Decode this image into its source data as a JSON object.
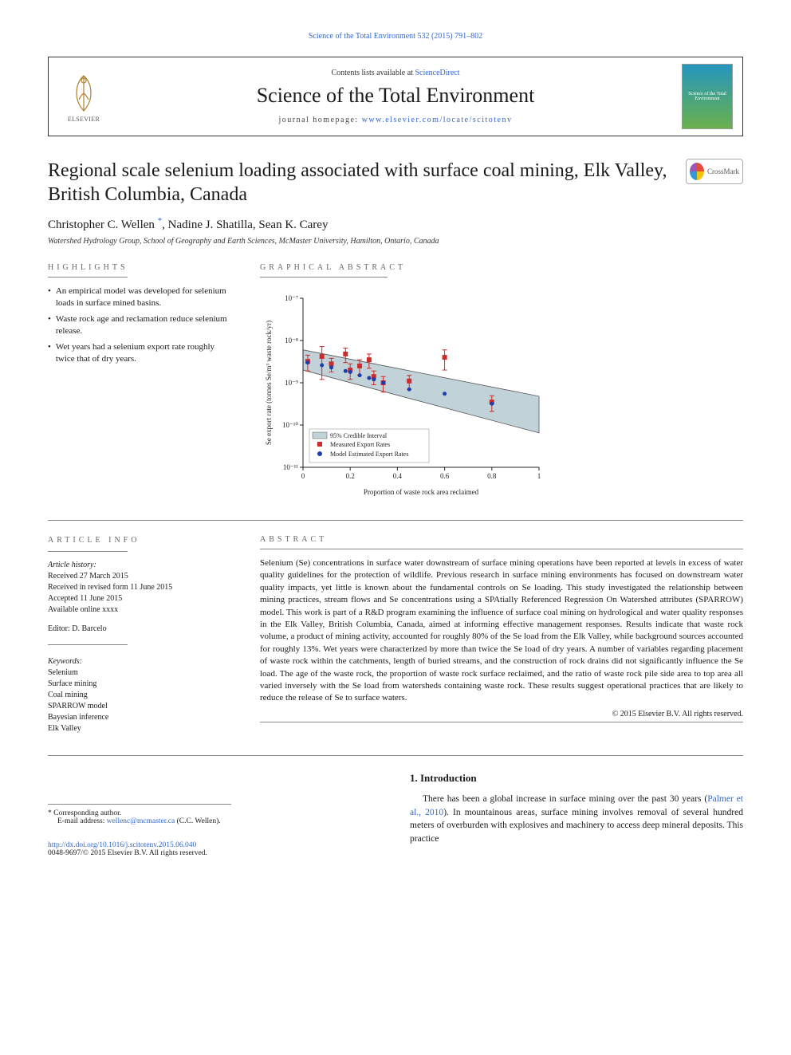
{
  "top_citation": "Science of the Total Environment 532 (2015) 791–802",
  "masthead": {
    "contents_prefix": "Contents lists available at ",
    "contents_link": "ScienceDirect",
    "journal_name": "Science of the Total Environment",
    "homepage_label": "journal homepage: ",
    "homepage_url": "www.elsevier.com/locate/scitotenv",
    "elsevier_label": "ELSEVIER",
    "cover_text": "Science of the Total Environment"
  },
  "article": {
    "title": "Regional scale selenium loading associated with surface coal mining, Elk Valley, British Columbia, Canada",
    "crossmark_label": "CrossMark",
    "authors_html": "Christopher C. Wellen *, Nadine J. Shatilla, Sean K. Carey",
    "author1": "Christopher C. Wellen ",
    "author_sep1": ", ",
    "author2": "Nadine J. Shatilla",
    "author_sep2": ", ",
    "author3": "Sean K. Carey",
    "affiliation": "Watershed Hydrology Group, School of Geography and Earth Sciences, McMaster University, Hamilton, Ontario, Canada"
  },
  "highlights": {
    "head": "HIGHLIGHTS",
    "items": [
      "An empirical model was developed for selenium loads in surface mined basins.",
      "Waste rock age and reclamation reduce selenium release.",
      "Wet years had a selenium export rate roughly twice that of dry years."
    ]
  },
  "graphical": {
    "head": "GRAPHICAL ABSTRACT",
    "chart": {
      "type": "scatter_with_band",
      "xlabel": "Proportion of waste rock area reclaimed",
      "ylabel": "Se export rate (tonnes Se/m³ waste rock/yr)",
      "xlim": [
        0,
        1
      ],
      "xtick_step": 0.2,
      "xticks": [
        "0",
        "0.2",
        "0.4",
        "0.6",
        "0.8",
        "1"
      ],
      "yscale": "log",
      "ylim": [
        1e-11,
        1e-07
      ],
      "yticks": [
        "10⁻¹¹",
        "10⁻¹⁰",
        "10⁻⁹",
        "10⁻⁸",
        "10⁻⁷"
      ],
      "band_color": "#a8bfc9",
      "band_opacity": 0.7,
      "band_label": "95% Credible Interval",
      "band_poly": [
        [
          0.0,
          2e-09
        ],
        [
          1.0,
          6.5e-11
        ],
        [
          1.0,
          4.8e-10
        ],
        [
          0.0,
          6e-09
        ]
      ],
      "measured": {
        "label": "Measured Export Rates",
        "marker": "square",
        "color": "#cc2b2b",
        "size": 6,
        "points": [
          {
            "x": 0.02,
            "y": 3.2e-09,
            "err": 1.3e-09
          },
          {
            "x": 0.08,
            "y": 4.2e-09,
            "err": 3e-09
          },
          {
            "x": 0.12,
            "y": 2.8e-09,
            "err": 1e-09
          },
          {
            "x": 0.18,
            "y": 4.8e-09,
            "err": 1.8e-09
          },
          {
            "x": 0.2,
            "y": 2e-09,
            "err": 8e-10
          },
          {
            "x": 0.24,
            "y": 2.5e-09,
            "err": 1e-09
          },
          {
            "x": 0.28,
            "y": 3.5e-09,
            "err": 1.3e-09
          },
          {
            "x": 0.3,
            "y": 1.4e-09,
            "err": 5e-10
          },
          {
            "x": 0.34,
            "y": 1e-09,
            "err": 4e-10
          },
          {
            "x": 0.45,
            "y": 1.1e-09,
            "err": 4e-10
          },
          {
            "x": 0.6,
            "y": 4e-09,
            "err": 2e-09
          },
          {
            "x": 0.8,
            "y": 3.5e-10,
            "err": 1.4e-10
          }
        ]
      },
      "model": {
        "label": "Model Estimated Export Rates",
        "marker": "circle",
        "color": "#1a3fb0",
        "size": 5,
        "points": [
          {
            "x": 0.02,
            "y": 3e-09
          },
          {
            "x": 0.08,
            "y": 2.6e-09
          },
          {
            "x": 0.12,
            "y": 2.3e-09
          },
          {
            "x": 0.18,
            "y": 1.9e-09
          },
          {
            "x": 0.2,
            "y": 1.8e-09
          },
          {
            "x": 0.24,
            "y": 1.5e-09
          },
          {
            "x": 0.28,
            "y": 1.3e-09
          },
          {
            "x": 0.3,
            "y": 1.2e-09
          },
          {
            "x": 0.34,
            "y": 1e-09
          },
          {
            "x": 0.45,
            "y": 7e-10
          },
          {
            "x": 0.6,
            "y": 5.5e-10
          },
          {
            "x": 0.8,
            "y": 3.2e-10
          }
        ]
      },
      "axis_color": "#222222",
      "grid_color": "#dddddd",
      "font_size_axis": 9,
      "font_size_legend": 8,
      "background_color": "#ffffff"
    }
  },
  "article_info": {
    "head": "ARTICLE INFO",
    "history_head": "Article history:",
    "received": "Received 27 March 2015",
    "revised": "Received in revised form 11 June 2015",
    "accepted": "Accepted 11 June 2015",
    "online": "Available online xxxx",
    "editor": "Editor: D. Barcelo",
    "keywords_head": "Keywords:",
    "keywords": [
      "Selenium",
      "Surface mining",
      "Coal mining",
      "SPARROW model",
      "Bayesian inference",
      "Elk Valley"
    ]
  },
  "abstract": {
    "head": "ABSTRACT",
    "text": "Selenium (Se) concentrations in surface water downstream of surface mining operations have been reported at levels in excess of water quality guidelines for the protection of wildlife. Previous research in surface mining environments has focused on downstream water quality impacts, yet little is known about the fundamental controls on Se loading. This study investigated the relationship between mining practices, stream flows and Se concentrations using a SPAtially Referenced Regression On Watershed attributes (SPARROW) model. This work is part of a R&D program examining the influence of surface coal mining on hydrological and water quality responses in the Elk Valley, British Columbia, Canada, aimed at informing effective management responses. Results indicate that waste rock volume, a product of mining activity, accounted for roughly 80% of the Se load from the Elk Valley, while background sources accounted for roughly 13%. Wet years were characterized by more than twice the Se load of dry years. A number of variables regarding placement of waste rock within the catchments, length of buried streams, and the construction of rock drains did not significantly influence the Se load. The age of the waste rock, the proportion of waste rock surface reclaimed, and the ratio of waste rock pile side area to top area all varied inversely with the Se load from watersheds containing waste rock. These results suggest operational practices that are likely to reduce the release of Se to surface waters.",
    "copyright": "© 2015 Elsevier B.V. All rights reserved."
  },
  "intro": {
    "title": "1. Introduction",
    "para1_a": "There has been a global increase in surface mining over the past 30 years (",
    "para1_link": "Palmer et al., 2010",
    "para1_b": "). In mountainous areas, surface mining involves removal of several hundred meters of overburden with explosives and machinery to access deep mineral deposits. This practice"
  },
  "footnote": {
    "corresponding": "* Corresponding author.",
    "email_label": "E-mail address: ",
    "email": "wellenc@mcmaster.ca",
    "email_tail": " (C.C. Wellen)."
  },
  "doi": {
    "url": "http://dx.doi.org/10.1016/j.scitotenv.2015.06.040",
    "issn_line": "0048-9697/© 2015 Elsevier B.V. All rights reserved."
  }
}
